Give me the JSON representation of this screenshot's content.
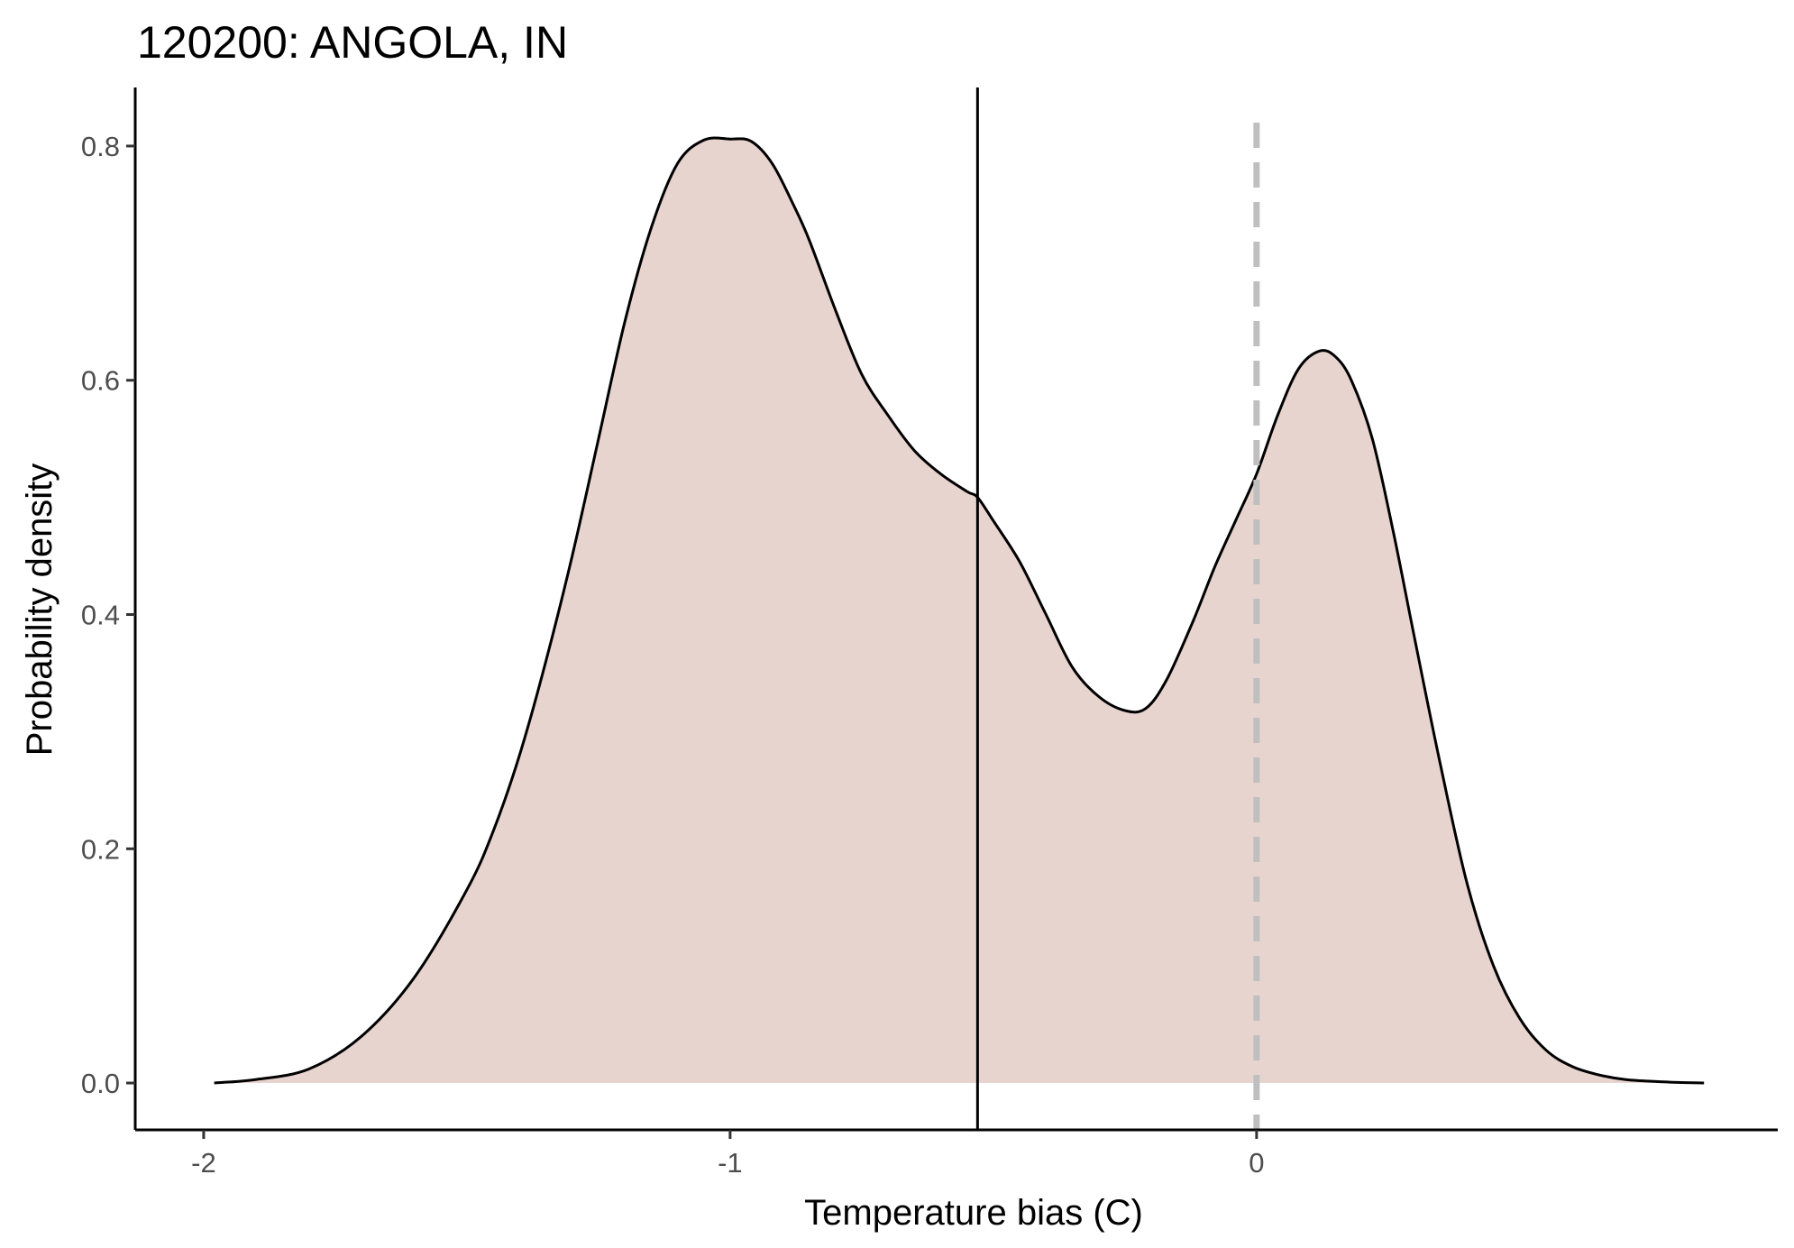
{
  "chart_data": {
    "type": "area",
    "title": "120200: ANGOLA, IN",
    "xlabel": "Temperature bias (C)",
    "ylabel": "Probability density",
    "xlim": [
      -2.13,
      0.99
    ],
    "ylim": [
      -0.04,
      0.85
    ],
    "x_ticks": [
      -2,
      -1,
      0
    ],
    "x_tick_labels": [
      "-2",
      "-1",
      "0"
    ],
    "y_ticks": [
      0.0,
      0.2,
      0.4,
      0.6,
      0.8
    ],
    "y_tick_labels": [
      "0.0",
      "0.2",
      "0.4",
      "0.6",
      "0.8"
    ],
    "grid": false,
    "fill_color": "#e8d4cf",
    "line_color": "#000000",
    "reference_lines": [
      {
        "x": -0.53,
        "style": "solid",
        "color": "#000000"
      },
      {
        "x": 0.0,
        "style": "dashed",
        "color": "#bfbfbf"
      }
    ],
    "series": [
      {
        "x": [
          -1.98,
          -1.9,
          -1.8,
          -1.7,
          -1.6,
          -1.5,
          -1.45,
          -1.4,
          -1.35,
          -1.3,
          -1.25,
          -1.2,
          -1.15,
          -1.1,
          -1.05,
          -1.0,
          -0.96,
          -0.92,
          -0.88,
          -0.85,
          -0.8,
          -0.75,
          -0.7,
          -0.65,
          -0.6,
          -0.55,
          -0.53,
          -0.5,
          -0.45,
          -0.4,
          -0.35,
          -0.3,
          -0.25,
          -0.21,
          -0.17,
          -0.12,
          -0.08,
          -0.04,
          0.0,
          0.04,
          0.08,
          0.12,
          0.15,
          0.18,
          0.22,
          0.26,
          0.3,
          0.35,
          0.4,
          0.45,
          0.5,
          0.55,
          0.6,
          0.65,
          0.7,
          0.75,
          0.8,
          0.85
        ],
        "y": [
          0.0,
          0.003,
          0.012,
          0.04,
          0.09,
          0.165,
          0.215,
          0.28,
          0.36,
          0.45,
          0.55,
          0.65,
          0.73,
          0.785,
          0.805,
          0.806,
          0.804,
          0.785,
          0.75,
          0.72,
          0.66,
          0.605,
          0.57,
          0.54,
          0.52,
          0.505,
          0.5,
          0.48,
          0.445,
          0.4,
          0.355,
          0.33,
          0.318,
          0.32,
          0.345,
          0.395,
          0.44,
          0.48,
          0.52,
          0.57,
          0.61,
          0.625,
          0.62,
          0.6,
          0.55,
          0.47,
          0.38,
          0.27,
          0.17,
          0.1,
          0.055,
          0.028,
          0.014,
          0.007,
          0.003,
          0.0015,
          0.0005,
          0.0
        ]
      }
    ]
  }
}
